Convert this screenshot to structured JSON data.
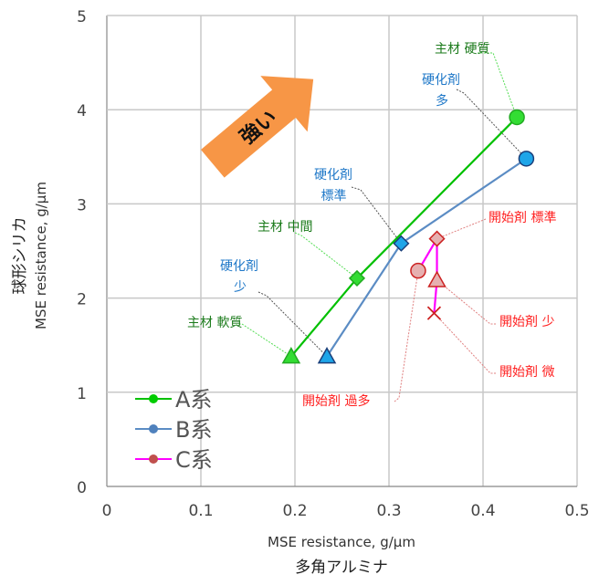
{
  "chart_data": {
    "type": "scatter",
    "title": "",
    "xlabel": "MSE resistance, g/μm",
    "xlabel2": "多角アルミナ",
    "ylabel": "MSE resistance,  g/μm",
    "ylabel2": "球形シリカ",
    "xlim": [
      0,
      0.5
    ],
    "ylim": [
      0,
      5
    ],
    "xticks": [
      "0",
      "0.1",
      "0.2",
      "0.3",
      "0.4",
      "0.5"
    ],
    "yticks": [
      "0",
      "1",
      "2",
      "3",
      "4",
      "5"
    ],
    "grid": true,
    "legend_position": "bottom-left",
    "series": [
      {
        "name": "A系",
        "color": "#00cc00",
        "line_color": "#00c000",
        "marker_color": "#33dd33",
        "points": [
          {
            "x": 0.196,
            "y": 1.38,
            "marker": "triangle"
          },
          {
            "x": 0.266,
            "y": 2.21,
            "marker": "diamond"
          },
          {
            "x": 0.436,
            "y": 3.92,
            "marker": "circle"
          }
        ]
      },
      {
        "name": "B系",
        "color": "#4f81bd",
        "line_color": "#5b8cc4",
        "marker_color": "#1ea5e8",
        "points": [
          {
            "x": 0.234,
            "y": 1.38,
            "marker": "triangle"
          },
          {
            "x": 0.313,
            "y": 2.58,
            "marker": "diamond"
          },
          {
            "x": 0.446,
            "y": 3.48,
            "marker": "circle"
          }
        ]
      },
      {
        "name": "C系",
        "color": "#c0504d",
        "line_color": "#ff00ff",
        "marker_color": "#e6b0b0",
        "points": [
          {
            "x": 0.331,
            "y": 2.29,
            "marker": "circle"
          },
          {
            "x": 0.351,
            "y": 2.63,
            "marker": "diamond"
          },
          {
            "x": 0.351,
            "y": 2.19,
            "marker": "triangle"
          },
          {
            "x": 0.348,
            "y": 1.84,
            "marker": "x"
          }
        ]
      }
    ],
    "annotations": [
      {
        "lines": [
          "主材 硬質"
        ],
        "series": 0,
        "point": 2,
        "color": "#1a7a1a"
      },
      {
        "lines": [
          "硬化剤",
          "多"
        ],
        "series": 1,
        "point": 2,
        "color": "#1f78c8"
      },
      {
        "lines": [
          "硬化剤",
          "標準"
        ],
        "series": 1,
        "point": 1,
        "color": "#1f78c8"
      },
      {
        "lines": [
          "主材 中間"
        ],
        "series": 0,
        "point": 1,
        "color": "#1a7a1a"
      },
      {
        "lines": [
          "硬化剤",
          "少"
        ],
        "series": 1,
        "point": 0,
        "color": "#1f78c8"
      },
      {
        "lines": [
          "主材 軟質"
        ],
        "series": 0,
        "point": 0,
        "color": "#1a7a1a"
      },
      {
        "lines": [
          "開始剤 標準"
        ],
        "series": 2,
        "point": 1,
        "color": "#ff2020"
      },
      {
        "lines": [
          "開始剤 少"
        ],
        "series": 2,
        "point": 2,
        "color": "#ff2020"
      },
      {
        "lines": [
          "開始剤 微"
        ],
        "series": 2,
        "point": 3,
        "color": "#ff2020"
      },
      {
        "lines": [
          "開始剤 過多"
        ],
        "series": 2,
        "point": 0,
        "color": "#ff2020"
      }
    ],
    "arrow_label": "強い",
    "arrow_color": "#f79646"
  }
}
